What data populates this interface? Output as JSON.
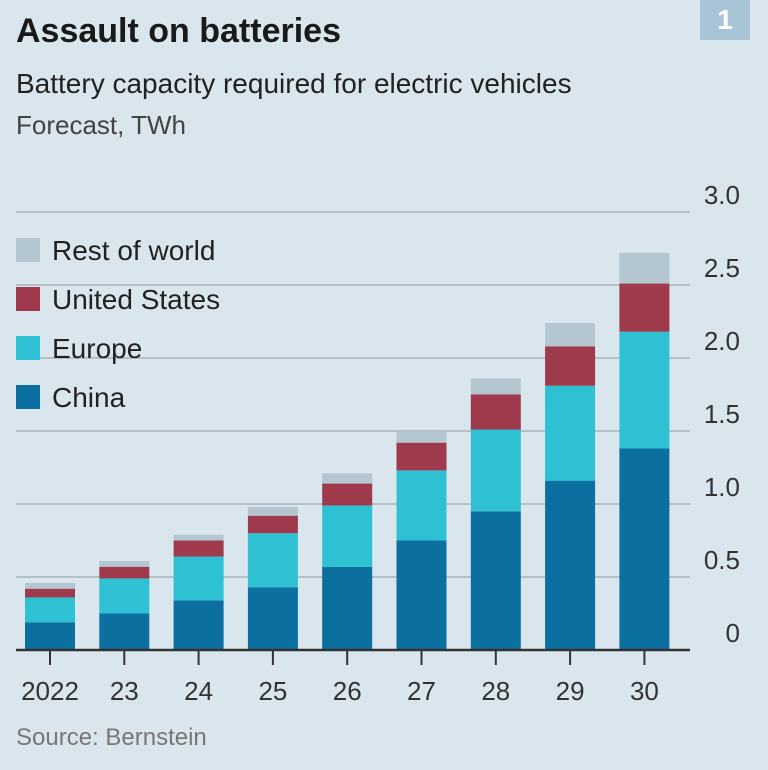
{
  "header": {
    "title": "Assault on batteries",
    "subtitle": "Battery capacity required for electric vehicles",
    "units": "Forecast, TWh",
    "badge": "1"
  },
  "footer": {
    "source": "Source: Bernstein"
  },
  "chart_data": {
    "type": "bar",
    "stacked": true,
    "title": "Assault on batteries",
    "subtitle": "Battery capacity required for electric vehicles",
    "ylabel": "Forecast, TWh",
    "categories": [
      "2022",
      "23",
      "24",
      "25",
      "26",
      "27",
      "28",
      "29",
      "30"
    ],
    "ylim": [
      0,
      3.0
    ],
    "yticks": [
      0,
      0.5,
      1.0,
      1.5,
      2.0,
      2.5,
      3.0
    ],
    "ytick_labels": [
      "0",
      "0.5",
      "1.0",
      "1.5",
      "2.0",
      "2.5",
      "3.0"
    ],
    "y_axis_position": "right",
    "grid": true,
    "legend_position": "top-left",
    "series": [
      {
        "name": "China",
        "color": "#0b6fa0",
        "values": [
          0.19,
          0.25,
          0.34,
          0.43,
          0.57,
          0.75,
          0.95,
          1.16,
          1.38
        ]
      },
      {
        "name": "Europe",
        "color": "#2ec1d4",
        "values": [
          0.17,
          0.24,
          0.3,
          0.37,
          0.42,
          0.48,
          0.56,
          0.65,
          0.8
        ]
      },
      {
        "name": "United States",
        "color": "#9e3a4c",
        "values": [
          0.06,
          0.08,
          0.11,
          0.12,
          0.15,
          0.19,
          0.24,
          0.27,
          0.33
        ]
      },
      {
        "name": "Rest of world",
        "color": "#b4c6d0",
        "values": [
          0.04,
          0.04,
          0.04,
          0.06,
          0.07,
          0.08,
          0.11,
          0.16,
          0.21
        ]
      }
    ],
    "legend_order": [
      "Rest of world",
      "United States",
      "Europe",
      "China"
    ]
  }
}
